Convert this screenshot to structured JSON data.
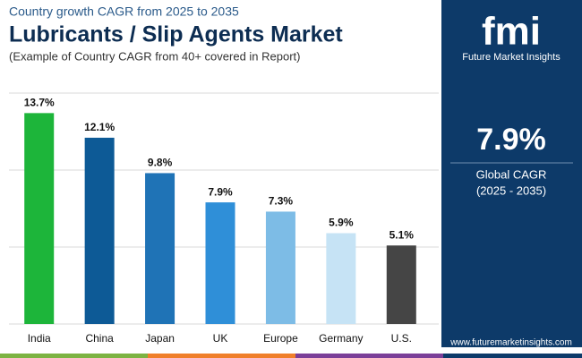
{
  "chart_data": {
    "type": "bar",
    "supertitle": "Country growth CAGR from 2025 to 2035",
    "title": "Lubricants / Slip Agents Market",
    "subtitle": "(Example of Country CAGR from 40+ covered in Report)",
    "categories": [
      "India",
      "China",
      "Japan",
      "UK",
      "Europe",
      "Germany",
      "U.S."
    ],
    "values": [
      13.7,
      12.1,
      9.8,
      7.9,
      7.3,
      5.9,
      5.1
    ],
    "value_labels": [
      "13.7%",
      "12.1%",
      "9.8%",
      "7.9%",
      "7.3%",
      "5.9%",
      "5.1%"
    ],
    "colors": [
      "#1db53a",
      "#0d5a96",
      "#1f73b6",
      "#2f8fd8",
      "#7dbce6",
      "#c6e3f5",
      "#454545"
    ],
    "ylim": [
      0,
      15
    ],
    "yticks": [
      0,
      5,
      10,
      15
    ],
    "grid": true
  },
  "panel": {
    "logo": "fmi",
    "brand": "Future Market Insights",
    "value": "7.9%",
    "label": "Global CAGR",
    "period": "(2025 - 2035)",
    "url": "www.futuremarketinsights.com"
  }
}
